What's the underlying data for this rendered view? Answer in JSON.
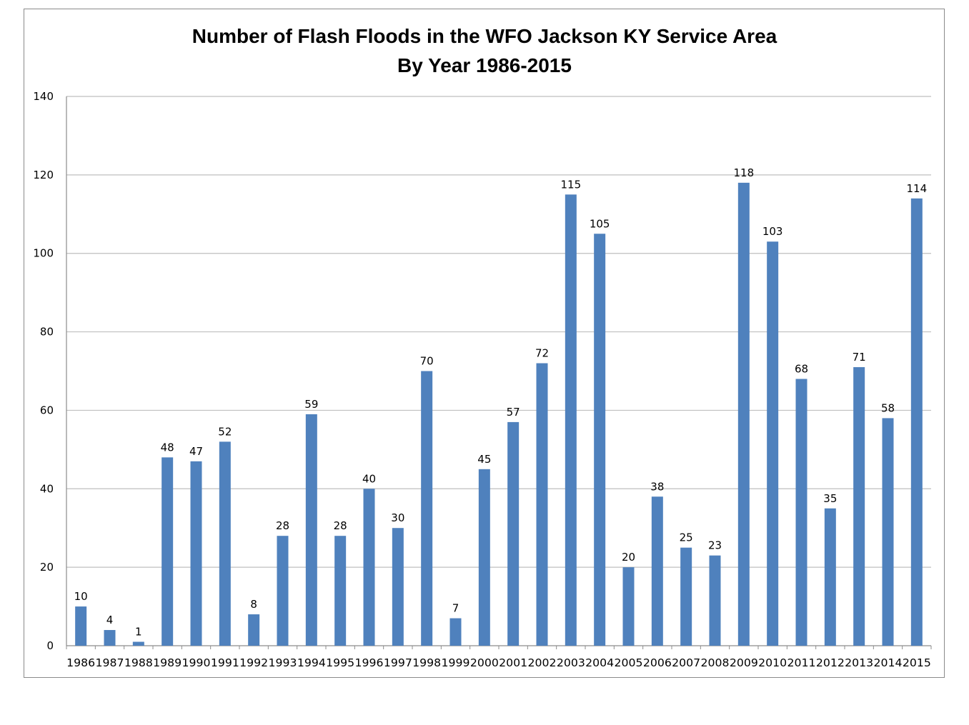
{
  "chart_data": {
    "type": "bar",
    "title_lines": [
      "Number of Flash Floods in the WFO Jackson KY Service Area",
      "By Year 1986-2015"
    ],
    "xlabel": "",
    "ylabel": "",
    "categories": [
      "1986",
      "1987",
      "1988",
      "1989",
      "1990",
      "1991",
      "1992",
      "1993",
      "1994",
      "1995",
      "1996",
      "1997",
      "1998",
      "1999",
      "2000",
      "2001",
      "2002",
      "2003",
      "2004",
      "2005",
      "2006",
      "2007",
      "2008",
      "2009",
      "2010",
      "2011",
      "2012",
      "2013",
      "2014",
      "2015"
    ],
    "values": [
      10,
      4,
      1,
      48,
      47,
      52,
      8,
      28,
      59,
      28,
      40,
      30,
      70,
      7,
      45,
      57,
      72,
      115,
      105,
      20,
      38,
      25,
      23,
      118,
      103,
      68,
      35,
      71,
      58,
      114
    ],
    "ylim": [
      0,
      140
    ],
    "yticks": [
      0,
      20,
      40,
      60,
      80,
      100,
      120,
      140
    ],
    "grid": true,
    "legend": "none",
    "data_labels": true,
    "colors": {
      "bar": "#4f81bd",
      "grid": "#bfbfbf",
      "axis": "#8c8c8c"
    }
  }
}
